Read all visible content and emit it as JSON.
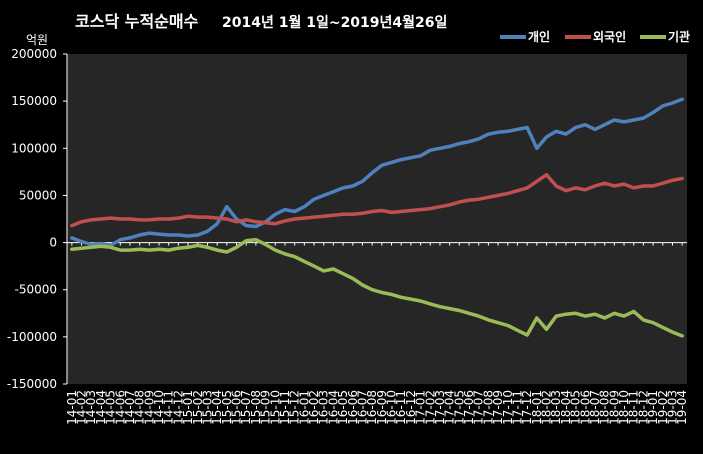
{
  "chart_data": {
    "type": "line",
    "title_main": "코스닥 누적순매수",
    "title_sub": "2014년 1월 1일~2019년4월26일",
    "ylabel": "억원",
    "ylim": [
      -150000,
      200000
    ],
    "yticks": [
      -150000,
      -100000,
      -50000,
      0,
      50000,
      100000,
      150000,
      200000
    ],
    "ytick_labels": [
      "-150000",
      "-100000",
      "-50000",
      "0",
      "50000",
      "100000",
      "150000",
      "200000"
    ],
    "legend_position": "top-right",
    "background": "#000000",
    "plot_background": "#262626",
    "categories": [
      "14-01",
      "14-02",
      "14-03",
      "14-04",
      "14-05",
      "14-06",
      "14-07",
      "14-08",
      "14-09",
      "14-10",
      "14-11",
      "14-12",
      "15-01",
      "15-02",
      "15-03",
      "15-04",
      "15-05",
      "15-06",
      "15-07",
      "15-08",
      "15-09",
      "15-10",
      "15-11",
      "15-12",
      "16-01",
      "16-02",
      "16-03",
      "16-04",
      "16-05",
      "16-06",
      "16-07",
      "16-08",
      "16-09",
      "16-10",
      "16-11",
      "16-12",
      "17-01",
      "17-02",
      "17-03",
      "17-04",
      "17-05",
      "17-06",
      "17-07",
      "17-08",
      "17-09",
      "17-10",
      "17-11",
      "17-12",
      "18-01",
      "18-02",
      "18-03",
      "18-04",
      "18-05",
      "18-06",
      "18-07",
      "18-08",
      "18-09",
      "18-10",
      "18-11",
      "18-12",
      "19-01",
      "19-02",
      "19-03",
      "19-04"
    ],
    "series": [
      {
        "name": "개인",
        "color": "#4f81bd",
        "values": [
          5000,
          1000,
          -2000,
          -1000,
          -3000,
          3000,
          5000,
          8000,
          10000,
          9000,
          8000,
          8000,
          7000,
          8000,
          12000,
          20000,
          38000,
          25000,
          18000,
          17000,
          22000,
          30000,
          35000,
          33000,
          38000,
          46000,
          50000,
          54000,
          58000,
          60000,
          65000,
          74000,
          82000,
          85000,
          88000,
          90000,
          92000,
          98000,
          100000,
          102000,
          105000,
          107000,
          110000,
          115000,
          117000,
          118000,
          120000,
          122000,
          100000,
          112000,
          118000,
          115000,
          122000,
          125000,
          120000,
          125000,
          130000,
          128000,
          130000,
          132000,
          138000,
          145000,
          148000,
          152000
        ]
      },
      {
        "name": "외국인",
        "color": "#c0504d",
        "values": [
          18000,
          22000,
          24000,
          25000,
          26000,
          25000,
          25000,
          24000,
          24000,
          25000,
          25000,
          26000,
          28000,
          27000,
          27000,
          26000,
          25000,
          22000,
          24000,
          22000,
          21000,
          20000,
          23000,
          25000,
          26000,
          27000,
          28000,
          29000,
          30000,
          30000,
          31000,
          33000,
          34000,
          32000,
          33000,
          34000,
          35000,
          36000,
          38000,
          40000,
          43000,
          45000,
          46000,
          48000,
          50000,
          52000,
          55000,
          58000,
          65000,
          72000,
          60000,
          55000,
          58000,
          56000,
          60000,
          63000,
          60000,
          62000,
          58000,
          60000,
          60000,
          63000,
          66000,
          68000
        ]
      },
      {
        "name": "기관",
        "color": "#9bbb59",
        "values": [
          -7000,
          -6000,
          -5000,
          -4000,
          -5000,
          -8000,
          -8000,
          -7000,
          -8000,
          -7000,
          -8000,
          -6000,
          -5000,
          -3000,
          -5000,
          -8000,
          -10000,
          -5000,
          2000,
          3000,
          -2000,
          -8000,
          -12000,
          -15000,
          -20000,
          -25000,
          -30000,
          -28000,
          -33000,
          -38000,
          -45000,
          -50000,
          -53000,
          -55000,
          -58000,
          -60000,
          -62000,
          -65000,
          -68000,
          -70000,
          -72000,
          -75000,
          -78000,
          -82000,
          -85000,
          -88000,
          -93000,
          -98000,
          -80000,
          -92000,
          -78000,
          -76000,
          -75000,
          -78000,
          -76000,
          -80000,
          -75000,
          -78000,
          -73000,
          -82000,
          -85000,
          -90000,
          -95000,
          -99000
        ]
      }
    ]
  }
}
